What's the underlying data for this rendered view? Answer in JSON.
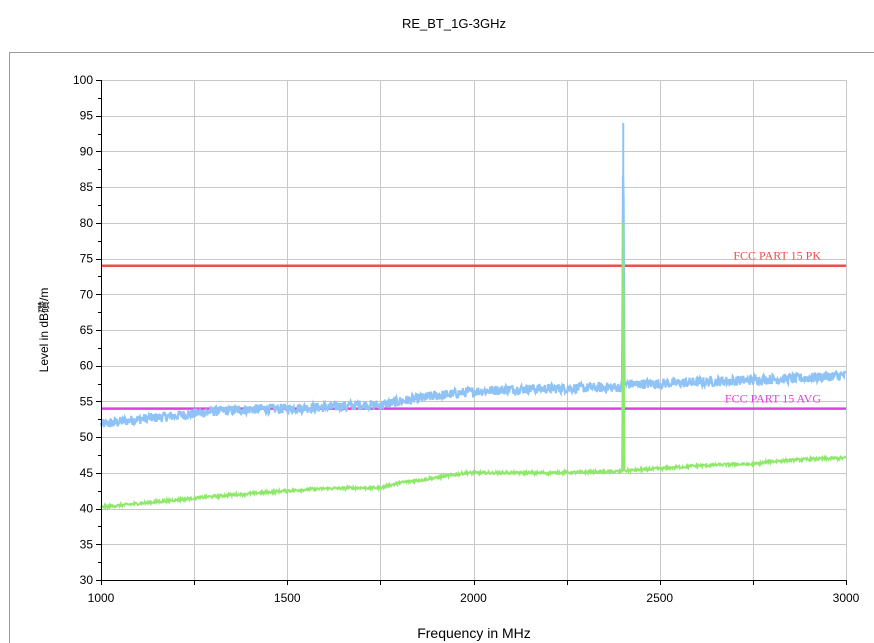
{
  "chart_data": {
    "type": "line",
    "title": "RE_BT_1G-3GHz",
    "xlabel": "Frequency in MHz",
    "ylabel": "Level in dB礸/m",
    "xlim": [
      1000,
      3000
    ],
    "ylim": [
      30,
      100
    ],
    "x_ticks": [
      1000,
      1500,
      2000,
      2500,
      3000
    ],
    "y_ticks": [
      30,
      35,
      40,
      45,
      50,
      55,
      60,
      65,
      70,
      75,
      80,
      85,
      90,
      95,
      100
    ],
    "grid": true,
    "limits": [
      {
        "name": "FCC PART 15  PK",
        "value": 74,
        "color": "#e8504a"
      },
      {
        "name": "FCC PART 15 AVG",
        "value": 54,
        "color": "#e040e0"
      }
    ],
    "series": [
      {
        "color": "#8fc3f5",
        "x": [
          1000,
          1100,
          1200,
          1250,
          1300,
          1400,
          1500,
          1600,
          1700,
          1750,
          1800,
          1900,
          2000,
          2100,
          2200,
          2300,
          2399,
          2402,
          2405,
          2500,
          2600,
          2700,
          2800,
          2900,
          3000
        ],
        "y": [
          51.8,
          52.5,
          53.0,
          53.3,
          53.6,
          53.9,
          54.0,
          54.2,
          54.5,
          54.5,
          55.0,
          55.8,
          56.4,
          56.7,
          56.8,
          56.9,
          57.0,
          94.0,
          57.4,
          57.5,
          57.7,
          57.9,
          58.1,
          58.3,
          58.7
        ],
        "noise": 0.7
      },
      {
        "color": "#8ee86a",
        "x": [
          1000,
          1100,
          1200,
          1300,
          1400,
          1500,
          1600,
          1700,
          1750,
          1800,
          1900,
          1980,
          2000,
          2100,
          2200,
          2300,
          2399,
          2402,
          2405,
          2500,
          2600,
          2700,
          2750,
          2800,
          2900,
          3000
        ],
        "y": [
          40.2,
          40.7,
          41.2,
          41.7,
          42.1,
          42.5,
          42.8,
          42.9,
          42.9,
          43.6,
          44.3,
          45.0,
          45.0,
          45.0,
          45.0,
          45.1,
          45.2,
          80.0,
          45.3,
          45.6,
          46.0,
          46.2,
          46.2,
          46.6,
          46.9,
          47.1
        ],
        "noise": 0.2
      }
    ]
  }
}
